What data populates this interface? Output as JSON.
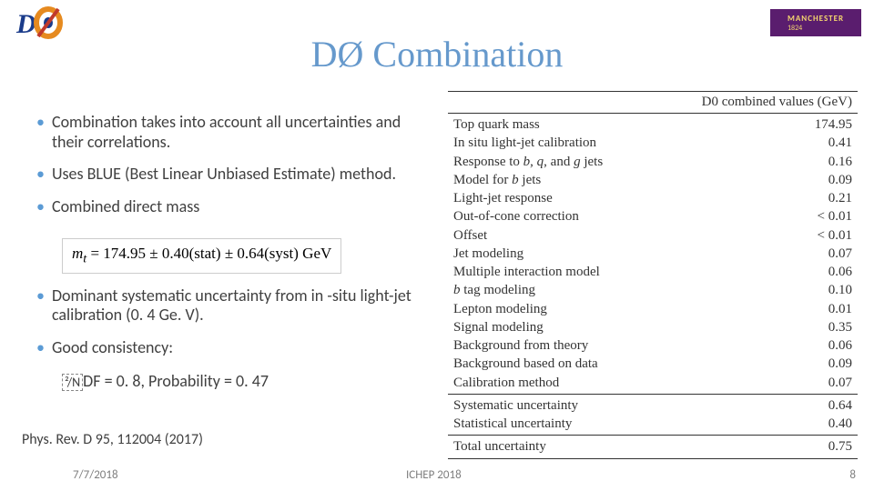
{
  "title": "DØ Combination",
  "logos": {
    "manchester_text": "MANCHESTER",
    "manchester_year": "1824",
    "manchester_bg": "#5a1d6e",
    "manchester_fg": "#f5d76e"
  },
  "bullets": {
    "b1": "Combination takes into account all uncertainties and their correlations.",
    "b2": "Uses BLUE (Best Linear Unbiased Estimate) method.",
    "b3": "Combined direct mass",
    "b4": "Dominant systematic uncertainty from in -situ light-jet calibration (0. 4 Ge. V).",
    "b5": "Good consistency:"
  },
  "formula": "mₜ = 174.95 ± 0.40(stat) ± 0.64(syst) GeV",
  "chi_line": {
    "box": "²/N",
    "rest": "DF = 0. 8, Probability = 0. 47"
  },
  "reference": "Phys. Rev. D 95, 112004 (2017)",
  "footer": {
    "date": "7/7/2018",
    "conf": "ICHEP 2018",
    "page": "8"
  },
  "table": {
    "header": "D0 combined values (GeV)",
    "font_family": "Times New Roman",
    "font_size_pt": 15,
    "border_color": "#333333",
    "text_color": "#333333",
    "rows": [
      {
        "label": "Top quark mass",
        "value": "174.95"
      },
      {
        "label": "In situ light-jet calibration",
        "value": "0.41"
      },
      {
        "label": "Response to b, q, and g jets",
        "label_html": "Response to <span class=\"ital\">b</span>, <span class=\"ital\">q</span>, and <span class=\"ital\">g</span> jets",
        "value": "0.16"
      },
      {
        "label": "Model for b jets",
        "label_html": "Model for <span class=\"ital\">b</span> jets",
        "value": "0.09"
      },
      {
        "label": "Light-jet response",
        "value": "0.21"
      },
      {
        "label": "Out-of-cone correction",
        "value": "< 0.01"
      },
      {
        "label": "Offset",
        "value": "< 0.01"
      },
      {
        "label": "Jet modeling",
        "value": "0.07"
      },
      {
        "label": "Multiple interaction model",
        "value": "0.06"
      },
      {
        "label": "b tag modeling",
        "label_html": "<span class=\"ital\">b</span> tag modeling",
        "value": "0.10"
      },
      {
        "label": "Lepton modeling",
        "value": "0.01"
      },
      {
        "label": "Signal modeling",
        "value": "0.35"
      },
      {
        "label": "Background from theory",
        "value": "0.06"
      },
      {
        "label": "Background based on data",
        "value": "0.09"
      },
      {
        "label": "Calibration method",
        "value": "0.07"
      }
    ],
    "summary": [
      {
        "label": "Systematic uncertainty",
        "value": "0.64"
      },
      {
        "label": "Statistical uncertainty",
        "value": "0.40"
      }
    ],
    "total": [
      {
        "label": "Total uncertainty",
        "value": "0.75"
      }
    ]
  }
}
